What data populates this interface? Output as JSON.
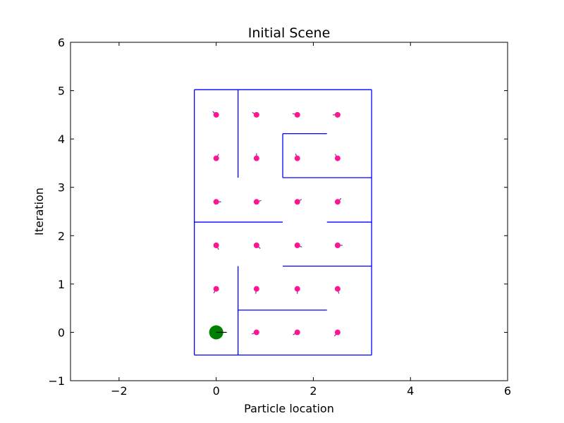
{
  "chart_data": {
    "type": "scatter",
    "title": "Initial Scene",
    "xlabel": "Particle location",
    "ylabel": "Iteration",
    "xlim": [
      -3,
      6
    ],
    "ylim": [
      -1,
      6
    ],
    "xticks": [
      -2,
      0,
      2,
      4,
      6
    ],
    "yticks": [
      -1,
      0,
      1,
      2,
      3,
      4,
      5,
      6
    ],
    "xtick_labels": [
      "−2",
      "0",
      "2",
      "4",
      "6"
    ],
    "ytick_labels": [
      "−1",
      "0",
      "1",
      "2",
      "3",
      "4",
      "5",
      "6"
    ],
    "grid": false,
    "colors": {
      "walls": "#0000ff",
      "particles": "#ff1493",
      "robot": "#008000",
      "heading": "#000000"
    },
    "walls": [
      {
        "x": [
          -0.45,
          3.2
        ],
        "y": [
          5.02,
          5.02
        ]
      },
      {
        "x": [
          -0.45,
          -0.45
        ],
        "y": [
          5.02,
          -0.47
        ]
      },
      {
        "x": [
          -0.45,
          3.2
        ],
        "y": [
          -0.47,
          -0.47
        ]
      },
      {
        "x": [
          3.2,
          3.2
        ],
        "y": [
          5.02,
          -0.47
        ]
      },
      {
        "x": [
          0.45,
          0.45
        ],
        "y": [
          5.02,
          3.2
        ]
      },
      {
        "x": [
          1.37,
          2.28
        ],
        "y": [
          4.11,
          4.11
        ]
      },
      {
        "x": [
          1.37,
          1.37
        ],
        "y": [
          4.11,
          3.2
        ]
      },
      {
        "x": [
          1.37,
          3.2
        ],
        "y": [
          3.2,
          3.2
        ]
      },
      {
        "x": [
          -0.45,
          1.37
        ],
        "y": [
          2.28,
          2.28
        ]
      },
      {
        "x": [
          2.28,
          3.2
        ],
        "y": [
          2.28,
          2.28
        ]
      },
      {
        "x": [
          1.37,
          3.2
        ],
        "y": [
          1.37,
          1.37
        ]
      },
      {
        "x": [
          0.45,
          0.45
        ],
        "y": [
          1.37,
          -0.47
        ]
      },
      {
        "x": [
          0.45,
          2.28
        ],
        "y": [
          0.46,
          0.46
        ]
      }
    ],
    "particles": [
      {
        "x": 0.0,
        "y": 4.5,
        "heading": 135
      },
      {
        "x": 0.83,
        "y": 4.5,
        "heading": 150
      },
      {
        "x": 1.67,
        "y": 4.5,
        "heading": 165
      },
      {
        "x": 2.5,
        "y": 4.5,
        "heading": 180
      },
      {
        "x": 0.0,
        "y": 3.6,
        "heading": 60
      },
      {
        "x": 0.83,
        "y": 3.6,
        "heading": 90
      },
      {
        "x": 1.67,
        "y": 3.6,
        "heading": 110
      },
      {
        "x": 2.5,
        "y": 3.6,
        "heading": 120
      },
      {
        "x": 0.0,
        "y": 2.7,
        "heading": 0
      },
      {
        "x": 0.83,
        "y": 2.7,
        "heading": 15
      },
      {
        "x": 1.67,
        "y": 2.7,
        "heading": 30
      },
      {
        "x": 2.5,
        "y": 2.7,
        "heading": 45
      },
      {
        "x": 0.0,
        "y": 1.8,
        "heading": 300
      },
      {
        "x": 0.83,
        "y": 1.8,
        "heading": 320
      },
      {
        "x": 1.67,
        "y": 1.8,
        "heading": 340
      },
      {
        "x": 2.5,
        "y": 1.8,
        "heading": 0
      },
      {
        "x": 0.0,
        "y": 0.9,
        "heading": 240
      },
      {
        "x": 0.83,
        "y": 0.9,
        "heading": 260
      },
      {
        "x": 1.67,
        "y": 0.9,
        "heading": 270
      },
      {
        "x": 2.5,
        "y": 0.9,
        "heading": 285
      },
      {
        "x": 0.83,
        "y": 0.0,
        "heading": 200
      },
      {
        "x": 1.67,
        "y": 0.0,
        "heading": 210
      },
      {
        "x": 2.5,
        "y": 0.0,
        "heading": 230
      }
    ],
    "robot": {
      "x": 0.0,
      "y": 0.0,
      "heading": 0
    }
  }
}
